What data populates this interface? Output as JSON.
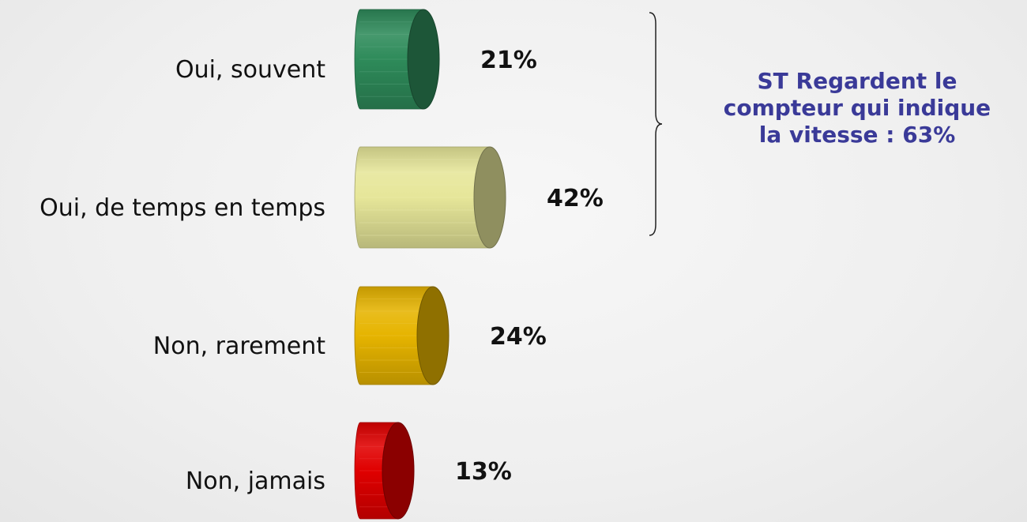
{
  "chart_data": {
    "type": "bar",
    "orientation": "horizontal",
    "categories": [
      "Oui, souvent",
      "Oui, de temps en temps",
      "Non, rarement",
      "Non, jamais"
    ],
    "values": [
      21,
      42,
      24,
      13
    ],
    "value_labels": [
      "21%",
      "42%",
      "24%",
      "13%"
    ],
    "unit": "%",
    "colors": [
      "#2e8b5a",
      "#e6e699",
      "#e6b400",
      "#e00000"
    ],
    "bracket_groups": [
      [
        "Oui, souvent",
        "Oui, de temps en temps"
      ]
    ],
    "grid": false,
    "legend": "none"
  },
  "annotation": {
    "lines": [
      "ST Regardent le",
      "compteur qui indique",
      "la vitesse : 63%"
    ],
    "color": "#3a3a98"
  }
}
